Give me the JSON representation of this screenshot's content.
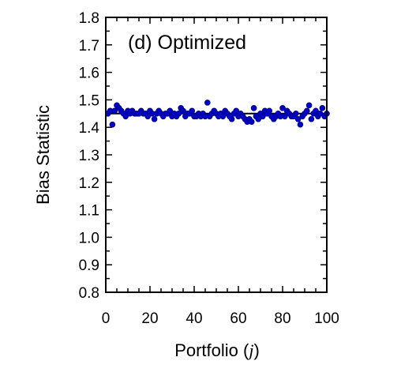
{
  "chart_data": {
    "type": "scatter",
    "title": "(d) Optimized",
    "xlabel": "Portfolio",
    "xlabel_var": "j",
    "ylabel": "Bias Statistic",
    "xlim": [
      0,
      100
    ],
    "ylim": [
      0.8,
      1.8
    ],
    "xticks": [
      "0",
      "20",
      "40",
      "60",
      "80",
      "100"
    ],
    "yticks": [
      "0.8",
      "0.9",
      "1.0",
      "1.1",
      "1.2",
      "1.3",
      "1.4",
      "1.5",
      "1.6",
      "1.7",
      "1.8"
    ],
    "reference_line": 1.45,
    "grid": false,
    "marker_color": "#0000cc",
    "marker_edge": "#00007a",
    "x": [
      1,
      2,
      3,
      4,
      5,
      6,
      7,
      8,
      9,
      10,
      11,
      12,
      13,
      14,
      15,
      16,
      17,
      18,
      19,
      20,
      21,
      22,
      23,
      24,
      25,
      26,
      27,
      28,
      29,
      30,
      31,
      32,
      33,
      34,
      35,
      36,
      37,
      38,
      39,
      40,
      41,
      42,
      43,
      44,
      45,
      46,
      47,
      48,
      49,
      50,
      51,
      52,
      53,
      54,
      55,
      56,
      57,
      58,
      59,
      60,
      61,
      62,
      63,
      64,
      65,
      66,
      67,
      68,
      69,
      70,
      71,
      72,
      73,
      74,
      75,
      76,
      77,
      78,
      79,
      80,
      81,
      82,
      83,
      84,
      85,
      86,
      87,
      88,
      89,
      90,
      91,
      92,
      93,
      94,
      95,
      96,
      97,
      98,
      99,
      100
    ],
    "y": [
      1.45,
      1.46,
      1.41,
      1.46,
      1.48,
      1.47,
      1.46,
      1.45,
      1.44,
      1.46,
      1.45,
      1.46,
      1.45,
      1.45,
      1.45,
      1.46,
      1.45,
      1.45,
      1.44,
      1.46,
      1.45,
      1.43,
      1.45,
      1.46,
      1.45,
      1.44,
      1.45,
      1.45,
      1.46,
      1.44,
      1.45,
      1.44,
      1.45,
      1.47,
      1.46,
      1.44,
      1.45,
      1.45,
      1.46,
      1.44,
      1.44,
      1.45,
      1.44,
      1.45,
      1.44,
      1.49,
      1.44,
      1.45,
      1.46,
      1.45,
      1.44,
      1.45,
      1.44,
      1.46,
      1.45,
      1.44,
      1.43,
      1.45,
      1.46,
      1.44,
      1.45,
      1.44,
      1.43,
      1.42,
      1.43,
      1.42,
      1.47,
      1.44,
      1.43,
      1.45,
      1.44,
      1.46,
      1.45,
      1.46,
      1.44,
      1.43,
      1.44,
      1.45,
      1.44,
      1.47,
      1.44,
      1.46,
      1.45,
      1.44,
      1.44,
      1.45,
      1.43,
      1.41,
      1.44,
      1.45,
      1.46,
      1.48,
      1.43,
      1.45,
      1.46,
      1.44,
      1.45,
      1.47,
      1.44,
      1.45
    ]
  }
}
